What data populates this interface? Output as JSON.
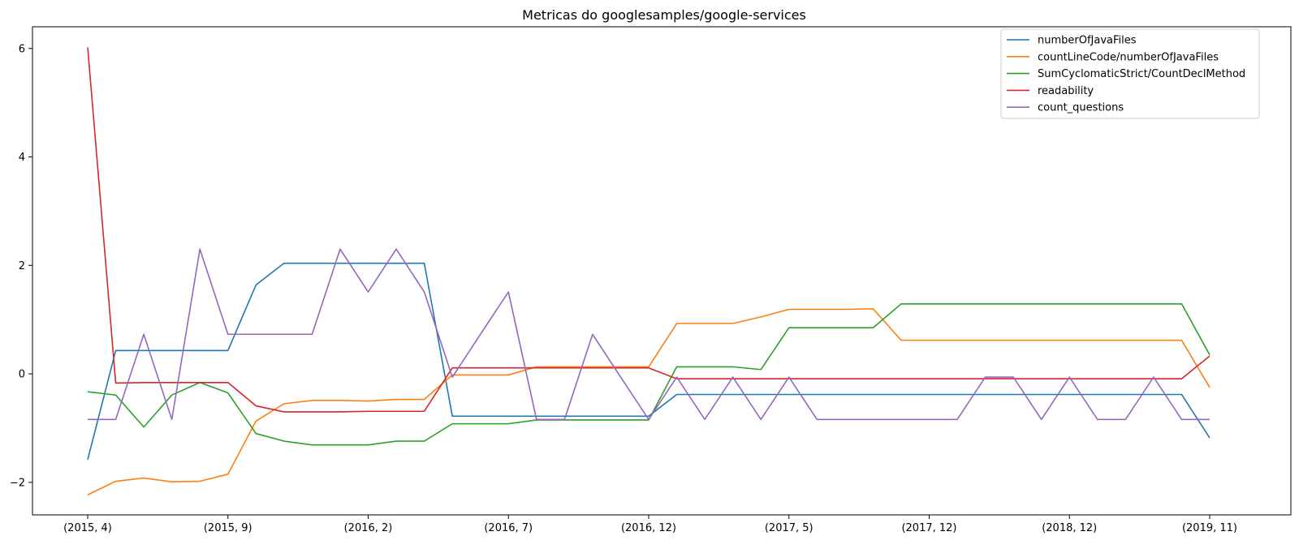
{
  "chart_data": {
    "type": "line",
    "title": "Metricas do googlesamples/google-services",
    "xlabel": "",
    "ylabel": "",
    "ylim": [
      -2.6,
      6.4
    ],
    "yticks": [
      6,
      4,
      2,
      0,
      -2
    ],
    "ytick_labels": [
      "6",
      "4",
      "2",
      "0",
      "−2"
    ],
    "x_index_range": [
      0,
      40
    ],
    "xticks": [
      0,
      5,
      10,
      15,
      20,
      25,
      30,
      35,
      40
    ],
    "xtick_labels": [
      "(2015, 4)",
      "(2015, 9)",
      "(2016, 2)",
      "(2016, 7)",
      "(2016, 12)",
      "(2017, 5)",
      "(2017, 12)",
      "(2018, 12)",
      "(2019, 11)"
    ],
    "grid": false,
    "legend_position": "top-right",
    "series": [
      {
        "name": "numberOfJavaFiles",
        "color": "#1f77b4",
        "values": [
          -1.58,
          0.43,
          0.43,
          0.43,
          0.43,
          0.43,
          1.64,
          2.04,
          2.04,
          2.04,
          2.04,
          2.04,
          2.04,
          -0.78,
          -0.78,
          -0.78,
          -0.78,
          -0.78,
          -0.78,
          -0.78,
          -0.78,
          -0.38,
          -0.38,
          -0.38,
          -0.38,
          -0.38,
          -0.38,
          -0.38,
          -0.38,
          -0.38,
          -0.38,
          -0.38,
          -0.38,
          -0.38,
          -0.38,
          -0.38,
          -0.38,
          -0.38,
          -0.38,
          -0.38,
          -1.18
        ]
      },
      {
        "name": "countLineCode/numberOfJavaFiles",
        "color": "#ff7f0e",
        "values": [
          -2.23,
          -1.98,
          -1.92,
          -1.99,
          -1.98,
          -1.85,
          -0.87,
          -0.55,
          -0.49,
          -0.49,
          -0.5,
          -0.47,
          -0.47,
          -0.02,
          -0.02,
          -0.02,
          0.13,
          0.13,
          0.13,
          0.13,
          0.13,
          0.93,
          0.93,
          0.93,
          1.05,
          1.19,
          1.19,
          1.19,
          1.2,
          0.62,
          0.62,
          0.62,
          0.62,
          0.62,
          0.62,
          0.62,
          0.62,
          0.62,
          0.62,
          0.62,
          -0.25
        ]
      },
      {
        "name": "SumCyclomaticStrict/CountDeclMethod",
        "color": "#2ca02c",
        "values": [
          -0.33,
          -0.39,
          -0.98,
          -0.39,
          -0.16,
          -0.35,
          -1.1,
          -1.24,
          -1.31,
          -1.31,
          -1.31,
          -1.24,
          -1.24,
          -0.92,
          -0.92,
          -0.92,
          -0.85,
          -0.85,
          -0.85,
          -0.85,
          -0.85,
          0.13,
          0.13,
          0.13,
          0.08,
          0.85,
          0.85,
          0.85,
          0.85,
          1.29,
          1.29,
          1.29,
          1.29,
          1.29,
          1.29,
          1.29,
          1.29,
          1.29,
          1.29,
          1.29,
          0.35
        ]
      },
      {
        "name": "readability",
        "color": "#d62728",
        "values": [
          6.02,
          -0.17,
          -0.16,
          -0.16,
          -0.16,
          -0.16,
          -0.59,
          -0.7,
          -0.7,
          -0.7,
          -0.69,
          -0.69,
          -0.69,
          0.11,
          0.11,
          0.11,
          0.11,
          0.11,
          0.11,
          0.11,
          0.11,
          -0.09,
          -0.09,
          -0.09,
          -0.09,
          -0.09,
          -0.09,
          -0.09,
          -0.09,
          -0.09,
          -0.09,
          -0.09,
          -0.09,
          -0.09,
          -0.09,
          -0.09,
          -0.09,
          -0.09,
          -0.09,
          -0.09,
          0.33
        ]
      },
      {
        "name": "count_questions",
        "color": "#9467bd",
        "values": [
          -0.84,
          -0.84,
          0.73,
          -0.84,
          2.3,
          0.73,
          0.73,
          0.73,
          0.73,
          2.3,
          1.51,
          2.3,
          1.51,
          -0.06,
          0.73,
          1.51,
          -0.84,
          -0.84,
          0.73,
          -0.06,
          -0.84,
          -0.06,
          -0.84,
          -0.06,
          -0.84,
          -0.06,
          -0.84,
          -0.84,
          -0.84,
          -0.84,
          -0.84,
          -0.84,
          -0.06,
          -0.06,
          -0.84,
          -0.06,
          -0.84,
          -0.84,
          -0.06,
          -0.84,
          -0.84
        ]
      }
    ]
  }
}
